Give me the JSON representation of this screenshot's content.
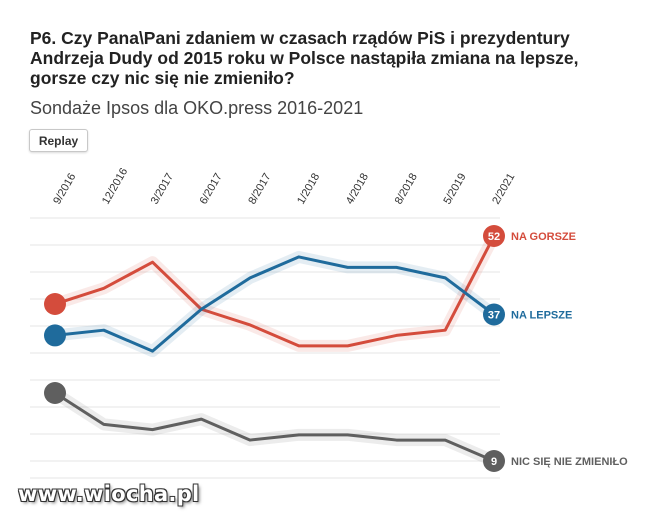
{
  "header": {
    "title": "P6. Czy Pana\\Pani zdaniem w czasach rządów PiS i prezydentury Andrzeja Dudy od 2015 roku w Polsce nastąpiła zmiana na lepsze, gorsze czy nic się nie zmieniło?",
    "subtitle": "Sondaże Ipsos dla OKO.press 2016-2021",
    "replay_label": "Replay"
  },
  "watermark": "www.wiocha.pl",
  "chart_data": {
    "type": "line",
    "title": "P6. Czy Pana\\Pani zdaniem w czasach rządów PiS i prezydentury Andrzeja Dudy od 2015 roku w Polsce nastąpiła zmiana na lepsze, gorsze czy nic się nie zmieniło?",
    "subtitle": "Sondaże Ipsos dla OKO.press 2016-2021",
    "categories": [
      "9/2016",
      "12/2016",
      "3/2017",
      "6/2017",
      "8/2017",
      "1/2018",
      "4/2018",
      "8/2018",
      "5/2019",
      "2/2021"
    ],
    "series": [
      {
        "name": "NA GORSZE",
        "color": "#d44c3c",
        "values": [
          39,
          42,
          47,
          38,
          35,
          31,
          31,
          33,
          34,
          52
        ]
      },
      {
        "name": "NA LEPSZE",
        "color": "#1f6b9c",
        "values": [
          33,
          34,
          30,
          38,
          44,
          48,
          46,
          46,
          44,
          37
        ]
      },
      {
        "name": "NIC SIĘ NIE ZMIENIŁO",
        "color": "#5f5f5f",
        "values": [
          22,
          16,
          15,
          17,
          13,
          14,
          14,
          13,
          13,
          9
        ]
      }
    ],
    "end_labels": [
      "52",
      "37",
      "9"
    ],
    "ylim": [
      5,
      60
    ],
    "grid": true,
    "xlabel": "",
    "ylabel": ""
  }
}
